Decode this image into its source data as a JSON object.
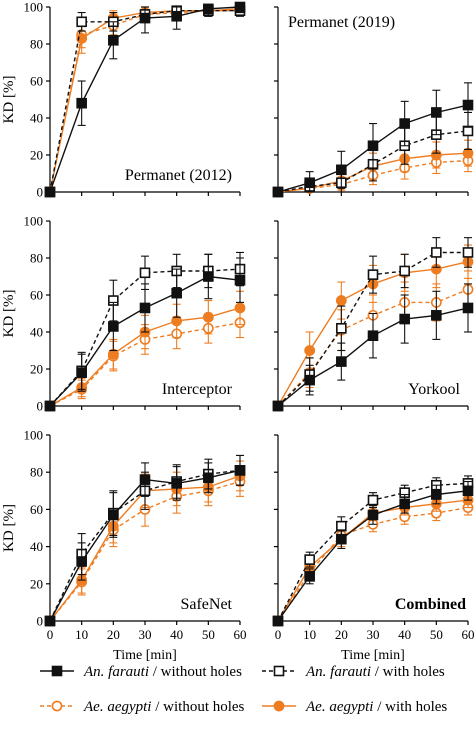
{
  "colors": {
    "black": "#111111",
    "orange": "#ee7d22"
  },
  "shared_axes": {
    "x_label": "Time [min]",
    "y_label": "KD [%]",
    "x_ticks": [
      0,
      10,
      20,
      30,
      40,
      50,
      60
    ],
    "y_ticks": [
      0,
      20,
      40,
      60,
      80,
      100
    ],
    "xlim": [
      0,
      60
    ],
    "ylim": [
      0,
      100
    ]
  },
  "legend": {
    "entries": [
      {
        "series": "farauti_without",
        "species": "An. farauti",
        "condition": " / without holes"
      },
      {
        "series": "farauti_with",
        "species": "An. farauti",
        "condition": " / with holes"
      },
      {
        "series": "aegypti_without",
        "species": "Ae. aegypti",
        "condition": " / without holes"
      },
      {
        "series": "aegypti_with",
        "species": "Ae. aegypti",
        "condition": " / with holes"
      }
    ]
  },
  "chart_data": [
    {
      "type": "line",
      "title": "Permanet (2012)",
      "x": [
        0,
        10,
        20,
        30,
        40,
        50,
        60
      ],
      "series": [
        {
          "name": "An. farauti / without holes",
          "values": [
            0,
            48,
            82,
            94,
            95,
            99,
            100
          ],
          "errors": [
            0,
            12,
            10,
            8,
            7,
            4,
            3
          ]
        },
        {
          "name": "An. farauti / with holes",
          "values": [
            0,
            92,
            92,
            96,
            98,
            98,
            98
          ],
          "errors": [
            0,
            5,
            5,
            4,
            3,
            3,
            3
          ]
        },
        {
          "name": "Ae. aegypti / without holes",
          "values": [
            0,
            85,
            90,
            96,
            97,
            98,
            98
          ],
          "errors": [
            0,
            7,
            5,
            4,
            3,
            3,
            3
          ]
        },
        {
          "name": "Ae. aegypti / with holes",
          "values": [
            0,
            83,
            94,
            97,
            98,
            98,
            99
          ],
          "errors": [
            0,
            8,
            4,
            3,
            3,
            3,
            3
          ]
        }
      ]
    },
    {
      "type": "line",
      "title": "Permanet (2019)",
      "x": [
        0,
        10,
        20,
        30,
        40,
        50,
        60
      ],
      "series": [
        {
          "name": "An. farauti / without holes",
          "values": [
            0,
            5,
            12,
            25,
            37,
            43,
            47
          ],
          "errors": [
            0,
            6,
            10,
            12,
            12,
            12,
            12
          ]
        },
        {
          "name": "An. farauti / with holes",
          "values": [
            0,
            3,
            5,
            15,
            25,
            31,
            33
          ],
          "errors": [
            0,
            4,
            6,
            9,
            10,
            10,
            10
          ]
        },
        {
          "name": "Ae. aegypti / without holes",
          "values": [
            0,
            2,
            4,
            9,
            13,
            16,
            17
          ],
          "errors": [
            0,
            3,
            4,
            5,
            6,
            6,
            6
          ]
        },
        {
          "name": "Ae. aegypti / with holes",
          "values": [
            0,
            2,
            6,
            14,
            18,
            20,
            21
          ],
          "errors": [
            0,
            3,
            5,
            7,
            7,
            7,
            7
          ]
        }
      ]
    },
    {
      "type": "line",
      "title": "Interceptor",
      "x": [
        0,
        10,
        20,
        30,
        40,
        50,
        60
      ],
      "series": [
        {
          "name": "An. farauti / without holes",
          "values": [
            0,
            18,
            43,
            53,
            61,
            70,
            68
          ],
          "errors": [
            0,
            10,
            13,
            13,
            13,
            12,
            12
          ]
        },
        {
          "name": "An. farauti / with holes",
          "values": [
            0,
            19,
            57,
            72,
            73,
            73,
            74
          ],
          "errors": [
            0,
            10,
            11,
            9,
            9,
            9,
            9
          ]
        },
        {
          "name": "Ae. aegypti / without holes",
          "values": [
            0,
            9,
            27,
            36,
            39,
            42,
            45
          ],
          "errors": [
            0,
            5,
            8,
            8,
            8,
            8,
            8
          ]
        },
        {
          "name": "Ae. aegypti / with holes",
          "values": [
            0,
            10,
            28,
            40,
            46,
            48,
            53
          ],
          "errors": [
            0,
            5,
            8,
            9,
            9,
            9,
            9
          ]
        }
      ]
    },
    {
      "type": "line",
      "title": "Yorkool",
      "x": [
        0,
        10,
        20,
        30,
        40,
        50,
        60
      ],
      "series": [
        {
          "name": "An. farauti / without holes",
          "values": [
            0,
            14,
            24,
            38,
            47,
            49,
            53
          ],
          "errors": [
            0,
            8,
            10,
            12,
            13,
            13,
            13
          ]
        },
        {
          "name": "An. farauti / with holes",
          "values": [
            0,
            17,
            42,
            71,
            73,
            83,
            83
          ],
          "errors": [
            0,
            9,
            12,
            10,
            9,
            8,
            8
          ]
        },
        {
          "name": "Ae. aegypti / without holes",
          "values": [
            0,
            18,
            41,
            49,
            56,
            56,
            63
          ],
          "errors": [
            0,
            8,
            11,
            11,
            11,
            10,
            10
          ]
        },
        {
          "name": "Ae. aegypti / with holes",
          "values": [
            0,
            30,
            57,
            66,
            72,
            74,
            78
          ],
          "errors": [
            0,
            10,
            10,
            10,
            10,
            10,
            9
          ]
        }
      ]
    },
    {
      "type": "line",
      "title": "SafeNet",
      "x": [
        0,
        10,
        20,
        30,
        40,
        50,
        60
      ],
      "series": [
        {
          "name": "An. farauti / without holes",
          "values": [
            0,
            32,
            57,
            76,
            74,
            77,
            81
          ],
          "errors": [
            0,
            10,
            12,
            9,
            9,
            8,
            8
          ]
        },
        {
          "name": "An. farauti / with holes",
          "values": [
            0,
            36,
            58,
            70,
            75,
            79,
            81
          ],
          "errors": [
            0,
            11,
            12,
            10,
            9,
            8,
            8
          ]
        },
        {
          "name": "Ae. aegypti / without holes",
          "values": [
            0,
            21,
            49,
            60,
            67,
            70,
            75
          ],
          "errors": [
            0,
            7,
            9,
            9,
            9,
            8,
            8
          ]
        },
        {
          "name": "Ae. aegypti / with holes",
          "values": [
            0,
            22,
            51,
            70,
            71,
            72,
            78
          ],
          "errors": [
            0,
            7,
            9,
            9,
            9,
            8,
            8
          ]
        }
      ]
    },
    {
      "type": "line",
      "title": "Combined",
      "title_bold": true,
      "x": [
        0,
        10,
        20,
        30,
        40,
        50,
        60
      ],
      "series": [
        {
          "name": "An. farauti / without holes",
          "values": [
            0,
            24,
            44,
            57,
            63,
            68,
            70
          ],
          "errors": [
            0,
            4,
            5,
            5,
            5,
            5,
            5
          ]
        },
        {
          "name": "An. farauti / with holes",
          "values": [
            0,
            33,
            51,
            65,
            69,
            73,
            74
          ],
          "errors": [
            0,
            4,
            5,
            4,
            4,
            4,
            4
          ]
        },
        {
          "name": "Ae. aegypti / without holes",
          "values": [
            0,
            26,
            46,
            52,
            56,
            58,
            61
          ],
          "errors": [
            0,
            4,
            4,
            4,
            4,
            4,
            4
          ]
        },
        {
          "name": "Ae. aegypti / with holes",
          "values": [
            0,
            29,
            44,
            58,
            61,
            63,
            65
          ],
          "errors": [
            0,
            4,
            4,
            4,
            4,
            4,
            4
          ]
        }
      ]
    }
  ]
}
